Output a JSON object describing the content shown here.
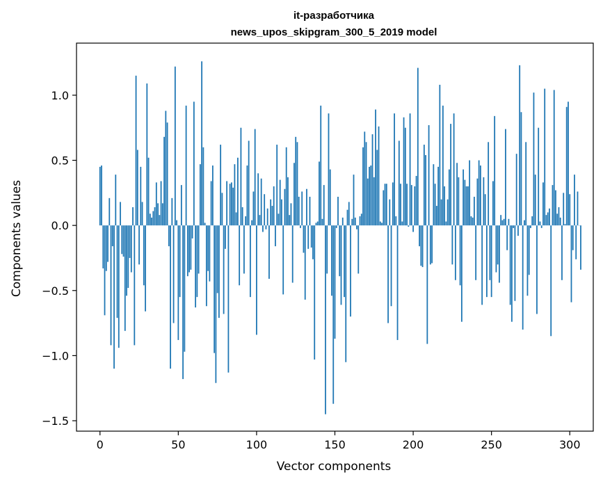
{
  "chart_data": {
    "type": "bar",
    "title_line1": "it-разработчика",
    "title_line2": "news_upos_skipgram_300_5_2019 model",
    "xlabel": "Vector components",
    "ylabel": "Components values",
    "xlim": [
      -15,
      315
    ],
    "ylim": [
      -1.58,
      1.4
    ],
    "xticks": [
      0,
      50,
      100,
      150,
      200,
      250,
      300
    ],
    "xtick_labels": [
      "0",
      "50",
      "100",
      "150",
      "200",
      "250",
      "300"
    ],
    "yticks": [
      -1.5,
      -1.0,
      -0.5,
      0.0,
      0.5,
      1.0
    ],
    "ytick_labels": [
      "−1.5",
      "−1.0",
      "−0.5",
      "0.0",
      "0.5",
      "1.0"
    ],
    "bar_color": "#1f77b4",
    "values": [
      0.45,
      0.46,
      -0.33,
      -0.69,
      -0.35,
      -0.28,
      0.21,
      -0.92,
      -0.16,
      -1.1,
      0.39,
      -0.71,
      -0.94,
      0.18,
      -0.22,
      -0.24,
      -0.81,
      -0.54,
      -0.48,
      -0.25,
      -0.36,
      0.14,
      -0.92,
      1.15,
      0.58,
      -0.3,
      0.45,
      0.18,
      -0.46,
      -0.66,
      1.09,
      0.52,
      0.09,
      0.06,
      0.11,
      0.14,
      0.33,
      0.17,
      0.08,
      0.34,
      0.17,
      0.68,
      0.88,
      0.79,
      -0.16,
      -1.1,
      0.21,
      -0.75,
      1.22,
      0.04,
      -0.88,
      -0.55,
      0.31,
      -1.18,
      -0.97,
      0.92,
      -0.39,
      -0.36,
      -0.34,
      -0.1,
      0.95,
      -0.63,
      -0.55,
      -0.37,
      0.47,
      1.26,
      0.6,
      0.02,
      -0.62,
      -0.35,
      -0.43,
      0.34,
      0.46,
      -0.98,
      -1.21,
      -0.52,
      -0.71,
      0.62,
      0.25,
      -0.68,
      -0.18,
      0.34,
      -1.13,
      0.32,
      0.33,
      0.29,
      0.47,
      0.1,
      0.52,
      -0.46,
      0.75,
      0.14,
      -0.37,
      0.07,
      0.46,
      0.65,
      -0.55,
      0.04,
      0.26,
      0.74,
      -0.84,
      0.4,
      0.08,
      0.36,
      -0.05,
      0.24,
      -0.03,
      0.13,
      -0.41,
      0.2,
      0.15,
      0.3,
      -0.16,
      0.62,
      0.09,
      0.35,
      0.2,
      -0.53,
      0.28,
      0.6,
      0.37,
      0.08,
      0.17,
      -0.44,
      0.48,
      0.68,
      0.64,
      0.22,
      -0.02,
      0.26,
      -0.21,
      -0.57,
      0.28,
      -0.18,
      0.22,
      -0.17,
      -0.26,
      -1.03,
      0.02,
      0.03,
      0.49,
      0.92,
      0.05,
      0.31,
      -1.45,
      -0.37,
      0.86,
      0.43,
      -0.54,
      -1.37,
      -0.87,
      -0.02,
      0.22,
      -0.39,
      -0.61,
      0.06,
      -0.55,
      -1.05,
      0.12,
      0.18,
      -0.7,
      0.05,
      0.39,
      0.06,
      -0.03,
      -0.37,
      0.07,
      0.09,
      0.6,
      0.72,
      0.64,
      0.36,
      0.45,
      0.46,
      0.7,
      0.37,
      0.89,
      0.58,
      0.76,
      0.03,
      0.02,
      0.27,
      0.32,
      0.32,
      -0.75,
      0.2,
      -0.62,
      0.33,
      0.86,
      0.07,
      -0.88,
      0.65,
      0.32,
      0.03,
      0.83,
      0.75,
      0.32,
      -0.01,
      0.86,
      0.31,
      -0.05,
      0.3,
      0.38,
      1.21,
      -0.16,
      -0.31,
      -0.32,
      0.62,
      0.54,
      -0.91,
      0.77,
      -0.3,
      -0.29,
      0.47,
      0.32,
      0.15,
      0.45,
      1.08,
      0.2,
      0.92,
      0.3,
      0.03,
      0.2,
      0.43,
      0.78,
      -0.3,
      0.86,
      -0.42,
      0.48,
      0.37,
      -0.46,
      -0.74,
      0.43,
      0.35,
      0.3,
      0.3,
      0.5,
      0.07,
      0.06,
      0.22,
      -0.42,
      0.36,
      0.5,
      0.46,
      -0.61,
      0.37,
      0.24,
      -0.55,
      0.64,
      -0.42,
      -0.55,
      0.34,
      0.84,
      -0.36,
      -0.3,
      -0.44,
      0.08,
      0.04,
      0.05,
      0.74,
      -0.19,
      0.05,
      -0.61,
      -0.74,
      -0.02,
      -0.58,
      0.55,
      -0.08,
      1.23,
      0.87,
      -0.8,
      0.04,
      0.64,
      -0.54,
      -0.38,
      -0.02,
      0.07,
      1.02,
      0.39,
      -0.68,
      0.75,
      0.03,
      -0.02,
      0.33,
      1.05,
      0.08,
      0.1,
      0.13,
      -0.85,
      0.31,
      1.04,
      0.27,
      0.09,
      0.14,
      0.06,
      -0.42,
      0.25,
      0.01,
      0.91,
      0.95,
      0.24,
      -0.59,
      -0.19,
      0.39,
      -0.26,
      0.26,
      0.0,
      -0.34
    ]
  }
}
